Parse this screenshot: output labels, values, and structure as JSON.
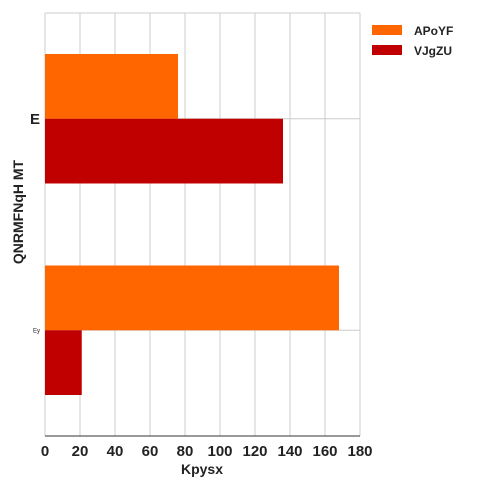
{
  "chart_data": {
    "type": "bar",
    "orientation": "horizontal",
    "categories": [
      "E",
      "Ey"
    ],
    "series": [
      {
        "name": "APoYF",
        "values": [
          76,
          168
        ],
        "color": "#ff6600"
      },
      {
        "name": "VJgZU",
        "values": [
          136,
          21
        ],
        "color": "#c00000"
      }
    ],
    "xlabel": "Kpysx",
    "ylabel": "QNRMFNqH MT",
    "xlim": [
      0,
      180
    ],
    "xticks": [
      0,
      20,
      40,
      60,
      80,
      100,
      120,
      140,
      160,
      180
    ],
    "grid": true,
    "legend": "top-right"
  }
}
